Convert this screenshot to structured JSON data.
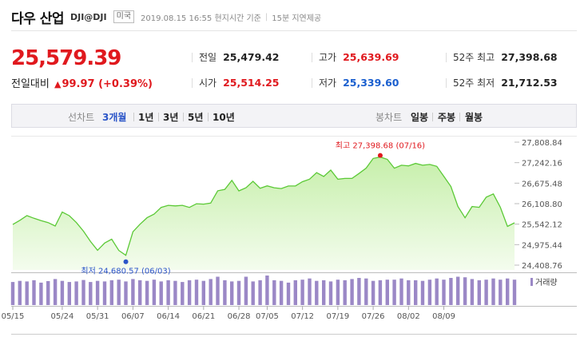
{
  "header": {
    "name": "다우 산업",
    "code": "DJI@DJI",
    "market": "미국",
    "time": "2019.08.15 16:55 현지시간 기준",
    "delay": "15분 지연제공"
  },
  "quote": {
    "price": "25,579.39",
    "change_label": "전일대비",
    "change_value": "99.97 (+0.39%)",
    "stats": {
      "prev_label": "전일",
      "prev_value": "25,479.42",
      "open_label": "시가",
      "open_value": "25,514.25",
      "high_label": "고가",
      "high_value": "25,639.69",
      "low_label": "저가",
      "low_value": "25,339.60",
      "w52h_label": "52주 최고",
      "w52h_value": "27,398.68",
      "w52l_label": "52주 최저",
      "w52l_value": "21,712.53"
    }
  },
  "toolbar": {
    "line_label": "선차트",
    "periods": [
      "3개월",
      "1년",
      "3년",
      "5년",
      "10년"
    ],
    "active_period": "3개월",
    "candle_label": "봉차트",
    "candles": [
      "일봉",
      "주봉",
      "월봉"
    ]
  },
  "colors": {
    "line": "#5bc936",
    "fill_top": "#c6efaa",
    "fill_bottom": "#f4fcee",
    "volume": "#9b88c6",
    "high_marker": "#e0191e",
    "low_marker": "#2b55c8"
  },
  "chart_data": {
    "type": "area",
    "x_ticks": [
      "05/15",
      "05/24",
      "05/31",
      "06/07",
      "06/14",
      "06/21",
      "06/28",
      "07/05",
      "07/12",
      "07/19",
      "07/26",
      "08/02",
      "08/09"
    ],
    "y_ticks": [
      "27,808.84",
      "27,242.16",
      "26,675.48",
      "26,108.80",
      "25,542.12",
      "24,975.44",
      "24,408.76"
    ],
    "ylim": [
      24408.76,
      27808.84
    ],
    "series": [
      {
        "values": [
          25532,
          25648,
          25777,
          25705,
          25640,
          25586,
          25490,
          25876,
          25776,
          25585,
          25348,
          25062,
          24820,
          25020,
          25126,
          24815,
          24680,
          25332,
          25539,
          25720,
          25819,
          26004,
          26063,
          26048,
          26062,
          26005,
          26107,
          26095,
          26125,
          26465,
          26504,
          26753,
          26463,
          26549,
          26727,
          26536,
          26601,
          26548,
          26526,
          26597,
          26600,
          26717,
          26786,
          26966,
          26860,
          27037,
          26784,
          26806,
          26807,
          26943,
          27092,
          27359,
          27398,
          27335,
          27088,
          27171,
          27154,
          27222,
          27171,
          27192,
          27140,
          26864,
          26583,
          26029,
          25717,
          26029,
          26007,
          26287,
          26378,
          26007,
          25479,
          25579
        ]
      },
      {
        "name": "거래량",
        "values": [
          78,
          82,
          80,
          84,
          76,
          81,
          88,
          82,
          78,
          80,
          85,
          78,
          82,
          80,
          84,
          86,
          80,
          88,
          84,
          82,
          86,
          80,
          84,
          82,
          78,
          84,
          86,
          82,
          88,
          96,
          84,
          80,
          82,
          96,
          80,
          84,
          100,
          84,
          82,
          76,
          84,
          86,
          90,
          82,
          84,
          80,
          86,
          84,
          88,
          92,
          90,
          82,
          84,
          86,
          86,
          90,
          84,
          84,
          82,
          86,
          90,
          86,
          92,
          96,
          94,
          88,
          84,
          86,
          90,
          86,
          90,
          86
        ]
      }
    ],
    "annotations": {
      "high": "최고 27,398.68 (07/16)",
      "low": "최저 24,680.57 (06/03)"
    }
  }
}
